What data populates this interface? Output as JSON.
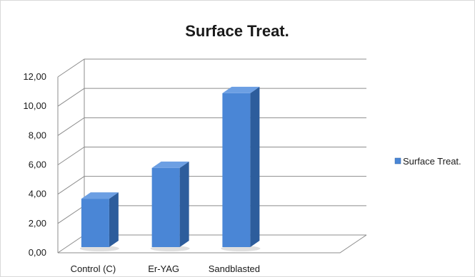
{
  "chart_data": {
    "type": "bar",
    "title": "Surface Treat.",
    "categories": [
      "Control (C)",
      "Er-YAG",
      "Sandblasted",
      ""
    ],
    "series": [
      {
        "name": "Surface Treat.",
        "values": [
          3.3,
          5.4,
          10.5,
          null
        ]
      }
    ],
    "ylim": [
      0,
      12
    ],
    "yticks": [
      "0,00",
      "2,00",
      "4,00",
      "6,00",
      "8,00",
      "10,00",
      "12,00"
    ],
    "grid": true,
    "legend_position": "right",
    "style": "3d-column",
    "colors": {
      "bar_front": "#4a86d6",
      "bar_side": "#2d5d9c",
      "bar_top": "#6c9fe3",
      "grid": "#8c8c8c",
      "text": "#1a1a1a"
    }
  }
}
